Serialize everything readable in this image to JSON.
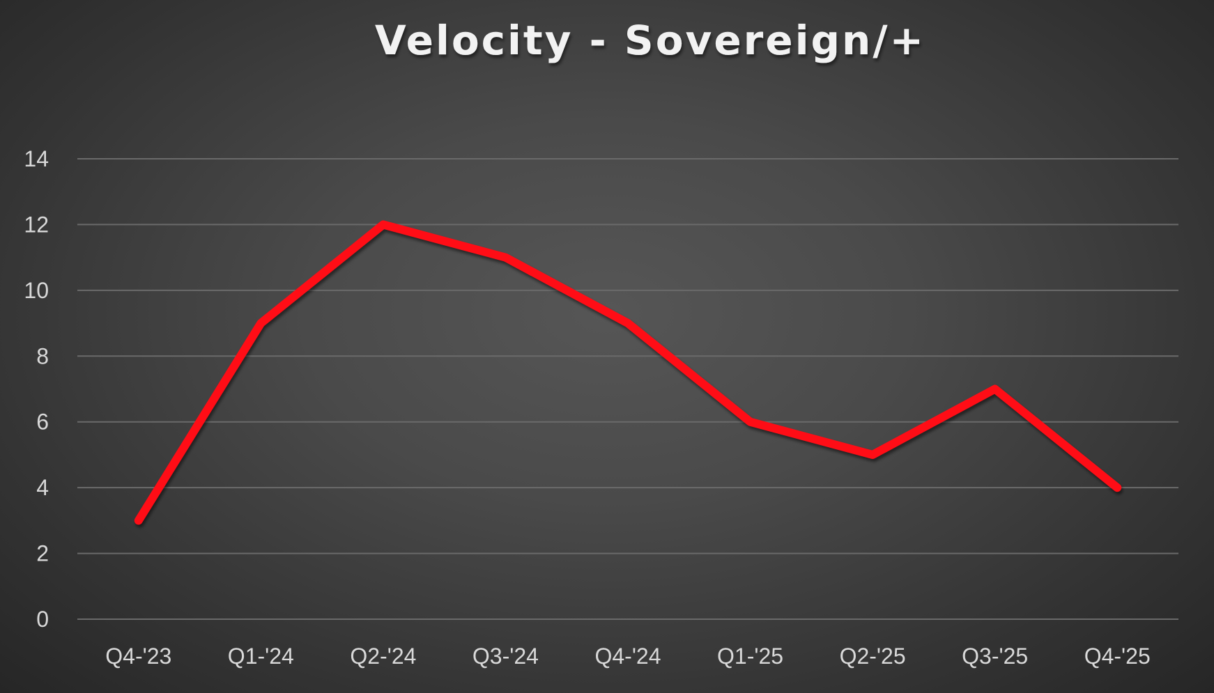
{
  "chart_data": {
    "type": "line",
    "title": "Velocity - Sovereign/+",
    "categories": [
      "Q4-'23",
      "Q1-'24",
      "Q2-'24",
      "Q3-'24",
      "Q4-'24",
      "Q1-'25",
      "Q2-'25",
      "Q3-'25",
      "Q4-'25"
    ],
    "series": [
      {
        "values": [
          3,
          9,
          12,
          11,
          9,
          6,
          5,
          7,
          4
        ],
        "color": "#ff0a14"
      }
    ],
    "yticks": [
      "0",
      "2",
      "4",
      "6",
      "8",
      "10",
      "12",
      "14"
    ],
    "ylim": [
      0,
      14
    ],
    "grid": true,
    "legend": "none",
    "xlabel": "",
    "ylabel": ""
  }
}
